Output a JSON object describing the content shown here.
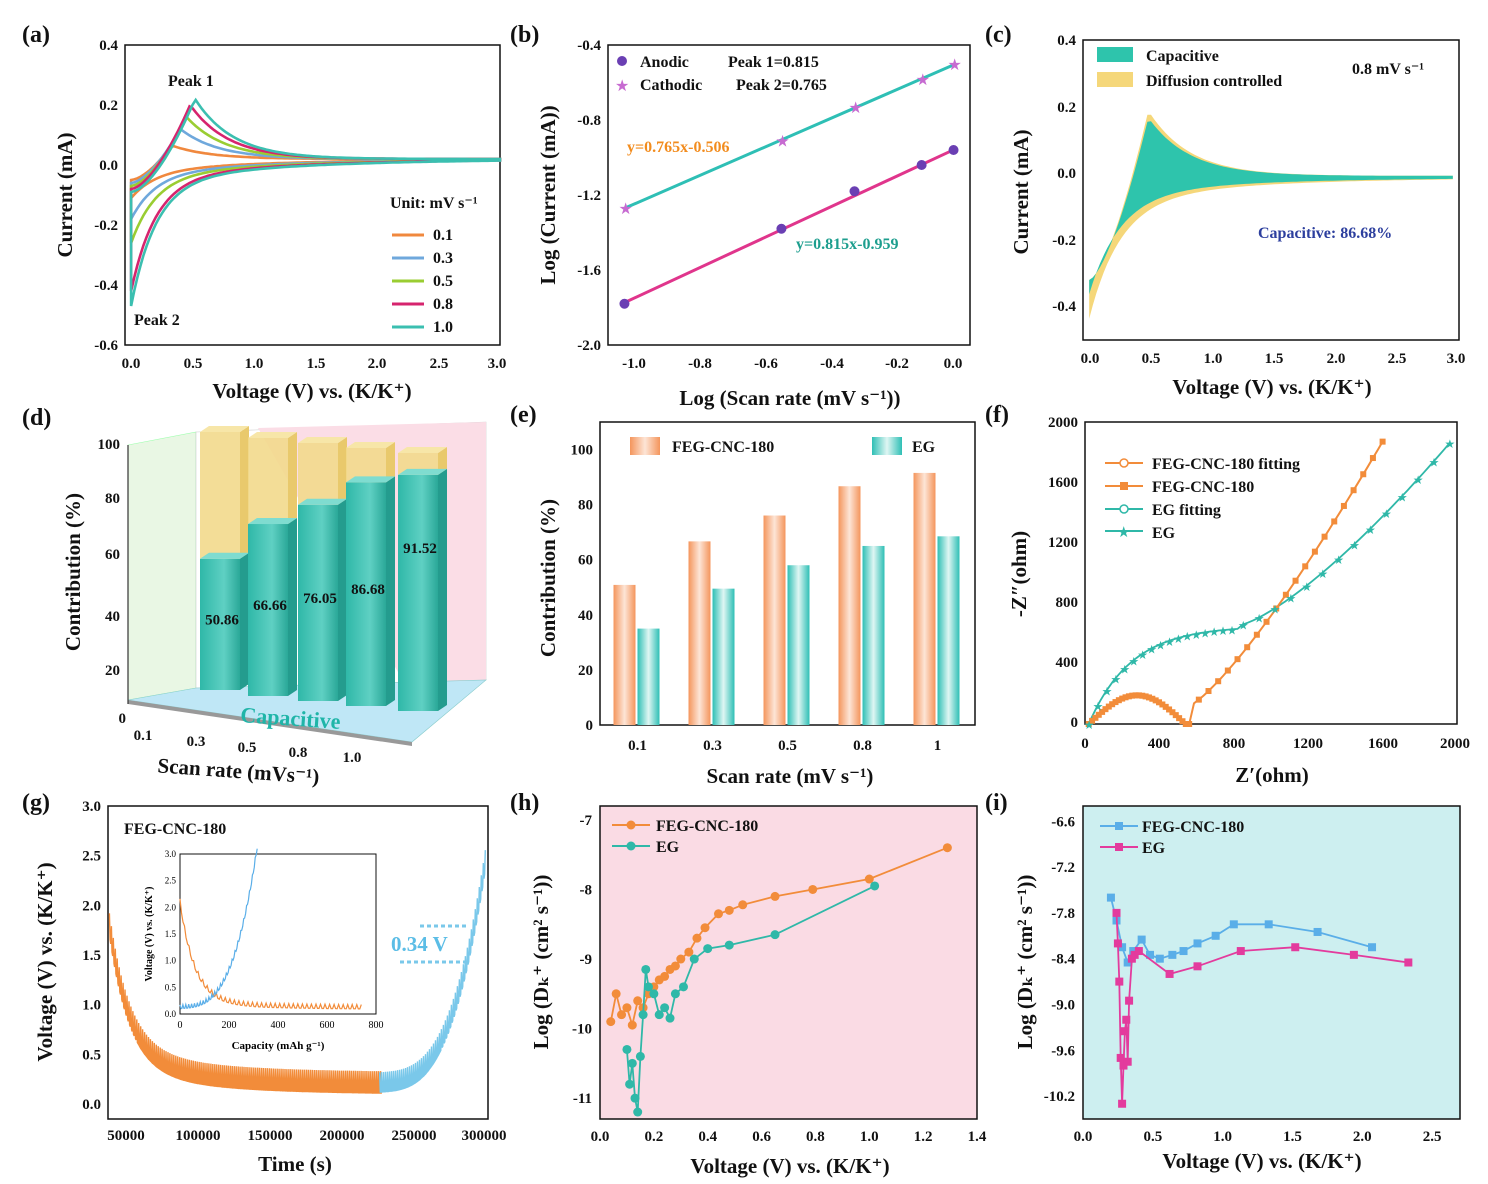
{
  "figure": {
    "a": {
      "label": "(a)",
      "xlabel": "Voltage (V) vs. (K/K⁺)",
      "ylabel": "Current (mA)",
      "xlim": [
        -0.05,
        3.0
      ],
      "ylim": [
        -0.6,
        0.4
      ],
      "xticks": [
        "0.0",
        "0.5",
        "1.0",
        "1.5",
        "2.0",
        "2.5",
        "3.0"
      ],
      "yticks": [
        "0.4",
        "0.2",
        "0.0",
        "-0.2",
        "-0.4",
        "-0.6"
      ],
      "peak1": "Peak 1",
      "peak2": "Peak 2",
      "unit": "Unit: mV s⁻¹",
      "series": [
        {
          "name": "0.1",
          "color": "#f0883e",
          "peak": [
            0.33,
            0.065
          ],
          "low": -0.14
        },
        {
          "name": "0.3",
          "color": "#6fa8dc",
          "peak": [
            0.4,
            0.12
          ],
          "low": -0.2
        },
        {
          "name": "0.5",
          "color": "#9acd32",
          "peak": [
            0.45,
            0.16
          ],
          "low": -0.27
        },
        {
          "name": "0.8",
          "color": "#d6246e",
          "peak": [
            0.48,
            0.2
          ],
          "low": -0.42
        },
        {
          "name": "1.0",
          "color": "#3bbfb0",
          "peak": [
            0.52,
            0.22
          ],
          "low": -0.46
        }
      ]
    },
    "b": {
      "label": "(b)",
      "xlabel": "Log (Scan rate (mV s⁻¹))",
      "ylabel": "Log (Current (mA))",
      "xlim": [
        -1.05,
        0.05
      ],
      "ylim": [
        -2.0,
        -0.4
      ],
      "xticks": [
        "-1.0",
        "-0.8",
        "-0.6",
        "-0.4",
        "-0.2",
        "0.0"
      ],
      "yticks": [
        "-0.4",
        "-0.8",
        "-1.2",
        "-1.6",
        "-2.0"
      ],
      "anodic_label": "Anodic",
      "cathodic_label": "Cathodic",
      "peak1_text": "Peak 1=0.815",
      "peak2_text": "Peak 2=0.765",
      "eq_cathodic": "y=0.765x-0.506",
      "eq_anodic": "y=0.815x-0.959",
      "x": [
        -1.0,
        -0.523,
        -0.301,
        -0.097,
        0.0
      ],
      "anodic": [
        -1.78,
        -1.38,
        -1.18,
        -1.04,
        -0.96
      ],
      "cathodic": [
        -1.27,
        -0.91,
        -0.73,
        -0.58,
        -0.5
      ]
    },
    "c": {
      "label": "(c)",
      "xlabel": "Voltage (V) vs. (K/K⁺)",
      "ylabel": "Current (mA)",
      "xlim": [
        -0.05,
        3.0
      ],
      "ylim": [
        -0.45,
        0.4
      ],
      "xticks": [
        "0.0",
        "0.5",
        "1.0",
        "1.5",
        "2.0",
        "2.5",
        "3.0"
      ],
      "yticks": [
        "0.4",
        "0.2",
        "0.0",
        "-0.2",
        "-0.4"
      ],
      "legend": [
        "Capacitive",
        "Diffusion controlled"
      ],
      "rate": "0.8 mV s⁻¹",
      "caption": "Capacitive: 86.68%",
      "capacitive_color": "#2ec4ac",
      "diffusion_color": "#f5d77a"
    },
    "d": {
      "label": "(d)",
      "ylabel": "Contribution (%)",
      "xlabel": "Scan rate (mVs⁻¹)",
      "yticks": [
        "100",
        "80",
        "60",
        "40",
        "20",
        "0"
      ],
      "xticks": [
        "0.1",
        "0.3",
        "0.5",
        "0.8",
        "1.0"
      ],
      "values": [
        50.86,
        66.66,
        76.05,
        86.68,
        91.52
      ],
      "value_labels": [
        "50.86",
        "66.66",
        "76.05",
        "86.68",
        "91.52"
      ],
      "floor_text": "Capacitive"
    },
    "e": {
      "label": "(e)",
      "xlabel": "Scan rate (mV s⁻¹)",
      "ylabel": "Contribution (%)",
      "ylim": [
        0,
        110
      ],
      "yticks": [
        "0",
        "20",
        "40",
        "60",
        "80",
        "100"
      ],
      "categories": [
        "0.1",
        "0.3",
        "0.5",
        "0.8",
        "1"
      ],
      "series": [
        {
          "name": "FEG-CNC-180",
          "values": [
            50.86,
            66.66,
            76.05,
            86.68,
            91.52
          ],
          "color": "#f4955c"
        },
        {
          "name": "EG",
          "values": [
            35.0,
            49.5,
            58.0,
            65.0,
            68.5
          ],
          "color": "#2ebfb5"
        }
      ]
    },
    "f": {
      "label": "(f)",
      "xlabel": "Z′(ohm)",
      "ylabel": "-Z″(ohm)",
      "xlim": [
        0,
        2000
      ],
      "ylim": [
        0,
        2000
      ],
      "xticks": [
        "0",
        "400",
        "800",
        "1200",
        "1600",
        "2000"
      ],
      "yticks": [
        "0",
        "400",
        "800",
        "1200",
        "1600",
        "2000"
      ],
      "legend": [
        "FEG-CNC-180 fitting",
        "FEG-CNC-180",
        "EG fitting",
        "EG"
      ]
    },
    "g": {
      "label": "(g)",
      "title": "FEG-CNC-180",
      "xlabel": "Time (s)",
      "ylabel": "Voltage (V) vs. (K/K⁺)",
      "xlim": [
        45000,
        308000
      ],
      "ylim": [
        -0.15,
        3.0
      ],
      "xticks": [
        "50000",
        "100000",
        "150000",
        "200000",
        "250000",
        "300000"
      ],
      "yticks": [
        "0.0",
        "0.5",
        "1.0",
        "1.5",
        "2.0",
        "2.5",
        "3.0"
      ],
      "annotation": "0.34 V",
      "inset": {
        "xlabel": "Capacity (mAh g⁻¹)",
        "ylabel": "Voltage (V) vs. (K/K⁺)",
        "xticks": [
          "0",
          "200",
          "400",
          "600",
          "800"
        ],
        "yticks": [
          "0.0",
          "0.5",
          "1.0",
          "1.5",
          "2.0",
          "2.5",
          "3.0"
        ]
      }
    },
    "h": {
      "label": "(h)",
      "xlabel": "Voltage (V) vs. (K/K⁺)",
      "ylabel": "Log (Dₖ⁺ (cm² s⁻¹))",
      "xlim": [
        0.0,
        1.4
      ],
      "ylim": [
        -11.3,
        -6.8
      ],
      "xticks": [
        "0.0",
        "0.2",
        "0.4",
        "0.6",
        "0.8",
        "1.0",
        "1.2",
        "1.4"
      ],
      "yticks": [
        "-7",
        "-8",
        "-9",
        "-10",
        "-11"
      ],
      "series": [
        {
          "name": "FEG-CNC-180",
          "color": "#f28c3a",
          "x": [
            0.04,
            0.06,
            0.08,
            0.1,
            0.12,
            0.14,
            0.16,
            0.18,
            0.2,
            0.22,
            0.24,
            0.26,
            0.28,
            0.3,
            0.33,
            0.36,
            0.39,
            0.44,
            0.48,
            0.53,
            0.65,
            0.79,
            1.0,
            1.29
          ],
          "y": [
            -9.9,
            -9.5,
            -9.8,
            -9.7,
            -9.95,
            -9.6,
            -9.7,
            -9.5,
            -9.4,
            -9.3,
            -9.25,
            -9.15,
            -9.1,
            -9.0,
            -8.9,
            -8.7,
            -8.55,
            -8.35,
            -8.3,
            -8.22,
            -8.1,
            -8.0,
            -7.85,
            -7.4
          ]
        },
        {
          "name": "EG",
          "color": "#2fb8a8",
          "x": [
            0.1,
            0.11,
            0.12,
            0.13,
            0.14,
            0.15,
            0.16,
            0.17,
            0.18,
            0.2,
            0.22,
            0.24,
            0.26,
            0.28,
            0.31,
            0.35,
            0.4,
            0.48,
            0.65,
            1.02
          ],
          "y": [
            -10.3,
            -10.8,
            -10.5,
            -11.0,
            -11.2,
            -10.4,
            -9.8,
            -9.15,
            -9.4,
            -9.5,
            -9.8,
            -9.7,
            -9.85,
            -9.5,
            -9.4,
            -9.0,
            -8.85,
            -8.8,
            -8.65,
            -7.95
          ]
        }
      ]
    },
    "i": {
      "label": "(i)",
      "xlabel": "Voltage (V) vs. (K/K⁺)",
      "ylabel": "Log (Dₖ⁺ (cm² s⁻¹))",
      "xlim": [
        0.0,
        2.7
      ],
      "ylim": [
        -10.5,
        -6.4
      ],
      "xticks": [
        "0.0",
        "0.5",
        "1.0",
        "1.5",
        "2.0",
        "2.5"
      ],
      "yticks": [
        "-6.6",
        "-7.2",
        "-7.8",
        "-8.4",
        "-9.0",
        "-9.6",
        "-10.2"
      ],
      "series": [
        {
          "name": "FEG-CNC-180",
          "color": "#5aaee8",
          "x": [
            0.2,
            0.24,
            0.28,
            0.32,
            0.36,
            0.42,
            0.48,
            0.55,
            0.64,
            0.72,
            0.82,
            0.95,
            1.08,
            1.33,
            1.68,
            2.07
          ],
          "y": [
            -7.6,
            -7.9,
            -8.25,
            -8.45,
            -8.3,
            -8.15,
            -8.35,
            -8.4,
            -8.35,
            -8.3,
            -8.2,
            -8.1,
            -7.95,
            -7.95,
            -8.05,
            -8.25
          ]
        },
        {
          "name": "EG",
          "color": "#e33b9d",
          "x": [
            0.24,
            0.25,
            0.26,
            0.27,
            0.28,
            0.29,
            0.3,
            0.31,
            0.32,
            0.33,
            0.35,
            0.37,
            0.4,
            0.62,
            0.82,
            1.13,
            1.52,
            1.94,
            2.33
          ],
          "y": [
            -7.8,
            -8.2,
            -8.7,
            -9.7,
            -10.3,
            -9.8,
            -9.35,
            -9.2,
            -9.75,
            -8.95,
            -8.4,
            -8.35,
            -8.3,
            -8.6,
            -8.5,
            -8.3,
            -8.25,
            -8.35,
            -8.45
          ]
        }
      ]
    }
  }
}
